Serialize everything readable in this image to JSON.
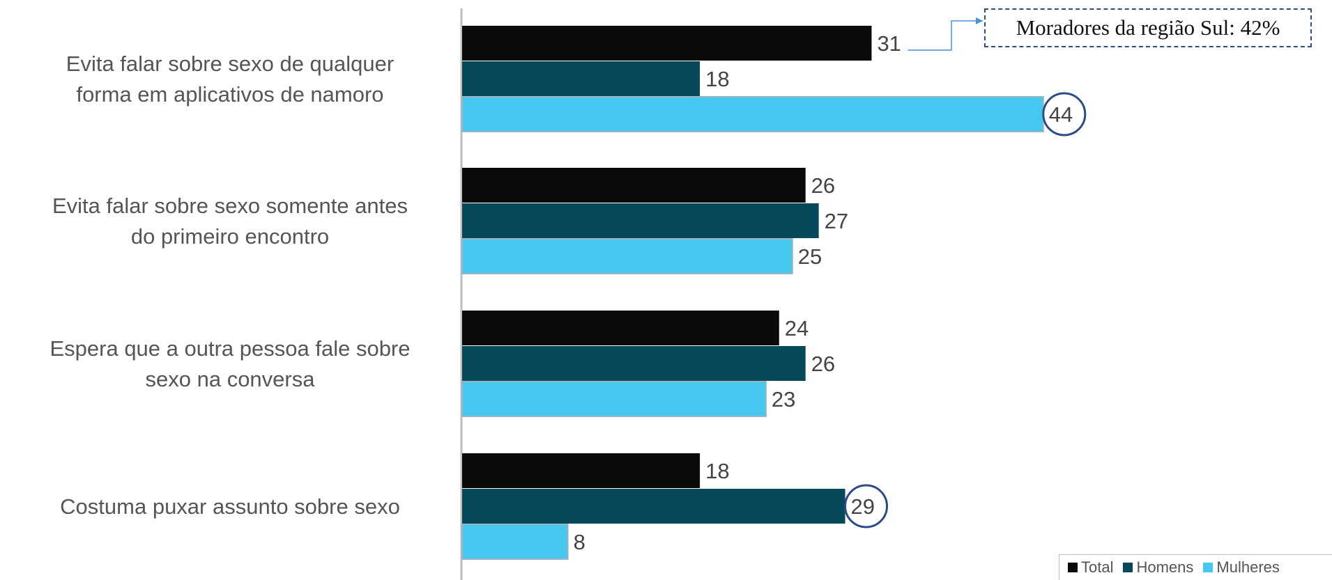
{
  "chart_data": {
    "type": "bar",
    "orientation": "horizontal",
    "categories": [
      [
        "Evita falar sobre sexo de qualquer",
        "forma em aplicativos de namoro"
      ],
      [
        "Evita falar sobre sexo somente antes",
        "do primeiro encontro"
      ],
      [
        "Espera que a outra pessoa fale sobre",
        "sexo na conversa"
      ],
      [
        "Costuma puxar assunto sobre sexo"
      ]
    ],
    "series": [
      {
        "name": "Total",
        "color": "#0a0a0a",
        "values": [
          31,
          26,
          24,
          18
        ]
      },
      {
        "name": "Homens",
        "color": "#06495a",
        "values": [
          18,
          27,
          26,
          29
        ]
      },
      {
        "name": "Mulheres",
        "color": "#44c8ef",
        "values": [
          44,
          25,
          23,
          8
        ]
      }
    ],
    "xlim": [
      0,
      46
    ],
    "highlighted": [
      {
        "series": 2,
        "category": 0
      },
      {
        "series": 1,
        "category": 3
      }
    ],
    "highlight_color": "#2c4a8a",
    "annotation": {
      "text": "Moradores da região Sul: 42%",
      "series": 0,
      "category": 0
    },
    "legend": {
      "position": "bottom-right",
      "labels": [
        "Total",
        "Homens",
        "Mulheres"
      ]
    }
  }
}
